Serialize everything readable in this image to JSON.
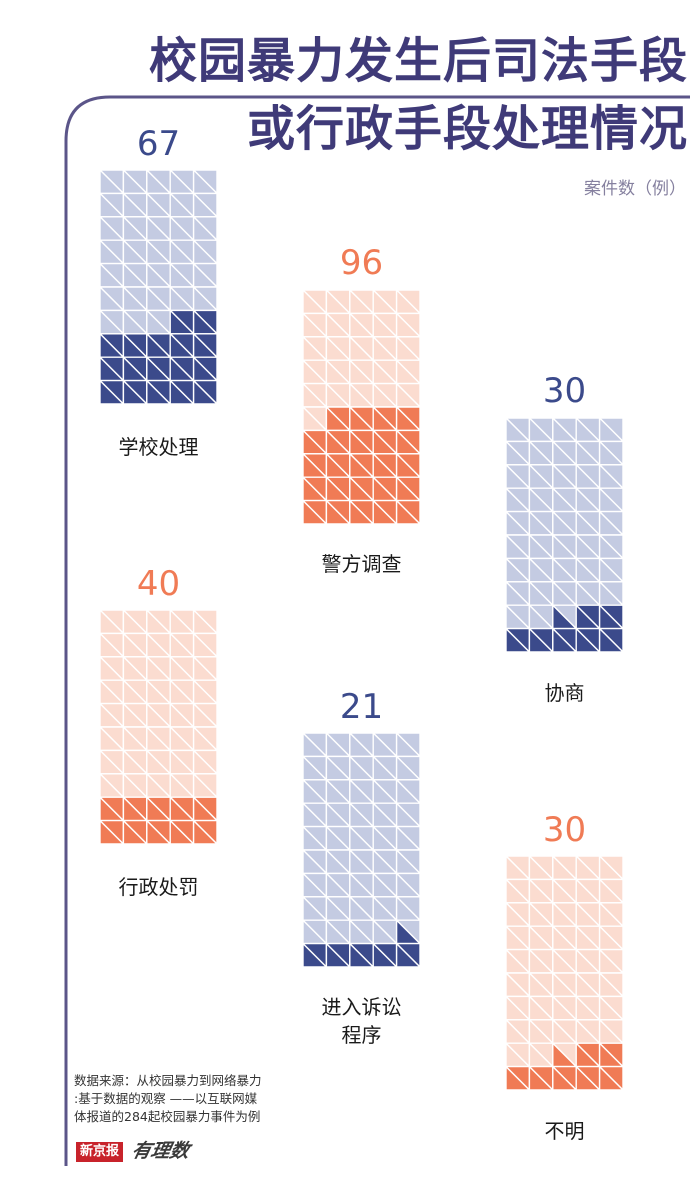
{
  "title_lines": [
    "校园暴力发生后司法手段",
    "或行政手段处理情况"
  ],
  "unit_label": "案件数（例）",
  "source_text": "数据来源：从校园暴力到网络暴力\n:基于数据的观察 ——以互联网媒\n体报道的284起校园暴力事件为例",
  "logo": {
    "newspaper": "新京报",
    "column": "有理数"
  },
  "colors": {
    "accent_line": "#5b5589",
    "blue_dark": "#3b4a8b",
    "blue_light": "#c4cbe2",
    "orange_dark": "#f07b55",
    "orange_light": "#fbdcd0",
    "title": "#3f3a78"
  },
  "chart_data": {
    "type": "waffle",
    "cells_per_grid": 50,
    "grid_columns": 5,
    "grid_rows": 10,
    "cell_split": "diagonal-triangles",
    "total_cases": 284,
    "series": [
      {
        "name": "学校处理",
        "value": 67,
        "theme": "blue"
      },
      {
        "name": "警方调查",
        "value": 96,
        "theme": "orange"
      },
      {
        "name": "协商",
        "value": 30,
        "theme": "blue"
      },
      {
        "name": "行政处罚",
        "value": 40,
        "theme": "orange"
      },
      {
        "name": "进入诉讼\n程序",
        "value": 21,
        "theme": "blue"
      },
      {
        "name": "不明",
        "value": 30,
        "theme": "orange"
      }
    ]
  }
}
